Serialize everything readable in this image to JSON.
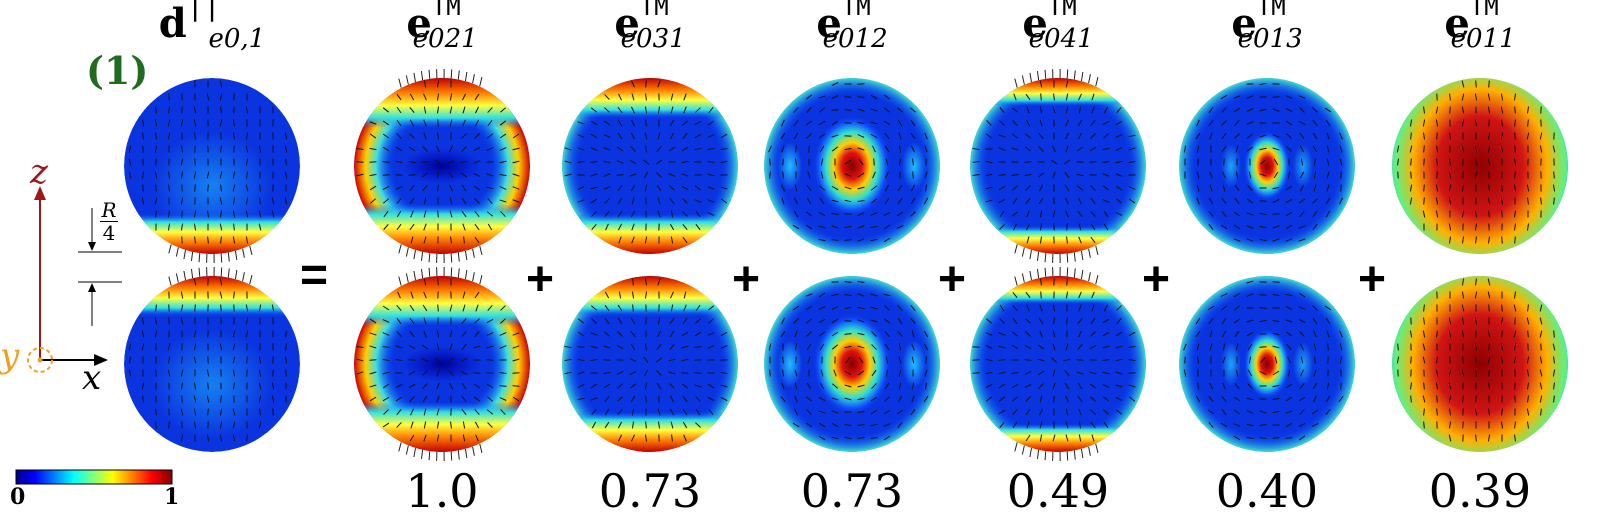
{
  "panel_label": "(1)",
  "equals_sign": "=",
  "plus_sign": "+",
  "lhs": {
    "base": "d",
    "sup": "||",
    "sub": "e0,1"
  },
  "modes": [
    {
      "base": "e",
      "sup": "TM",
      "sub": "e021",
      "coefficient": "1.0",
      "pattern": "poles"
    },
    {
      "base": "e",
      "sup": "TM",
      "sub": "e031",
      "coefficient": "0.73",
      "pattern": "poles-soft"
    },
    {
      "base": "e",
      "sup": "TM",
      "sub": "e012",
      "coefficient": "0.73",
      "pattern": "center-ring"
    },
    {
      "base": "e",
      "sup": "TM",
      "sub": "e041",
      "coefficient": "0.49",
      "pattern": "thin-poles"
    },
    {
      "base": "e",
      "sup": "TM",
      "sub": "e013",
      "coefficient": "0.40",
      "pattern": "small-center"
    },
    {
      "base": "e",
      "sup": "TM",
      "sub": "e011",
      "coefficient": "0.39",
      "pattern": "broad-center"
    }
  ],
  "axes": {
    "z_label": "z",
    "x_label": "x",
    "y_label": "y",
    "z_color": "#a01616",
    "y_color": "#f0a020"
  },
  "offset_label": {
    "numerator": "R",
    "denominator": "4"
  },
  "colorbar": {
    "min_label": "0",
    "max_label": "1",
    "colormap": "jet"
  }
}
